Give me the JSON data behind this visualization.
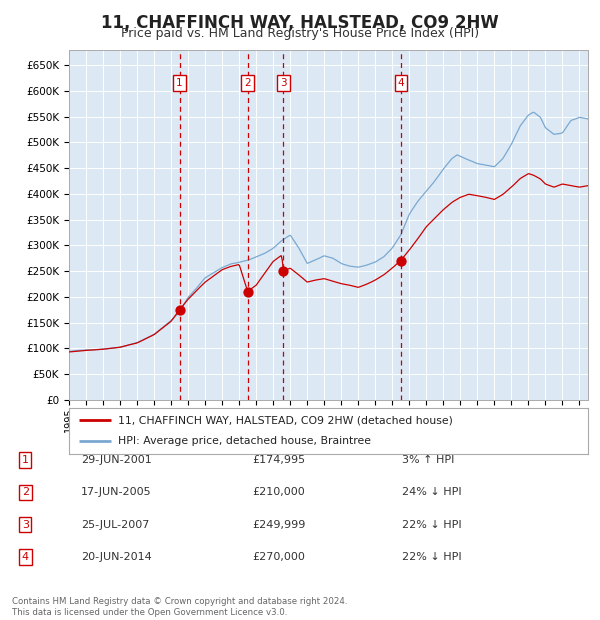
{
  "title": "11, CHAFFINCH WAY, HALSTEAD, CO9 2HW",
  "subtitle": "Price paid vs. HM Land Registry's House Price Index (HPI)",
  "title_fontsize": 12,
  "subtitle_fontsize": 9,
  "background_color": "#ffffff",
  "plot_bg_color": "#dce9f5",
  "grid_color": "#ffffff",
  "ylim": [
    0,
    680000
  ],
  "yticks": [
    0,
    50000,
    100000,
    150000,
    200000,
    250000,
    300000,
    350000,
    400000,
    450000,
    500000,
    550000,
    600000,
    650000
  ],
  "ytick_labels": [
    "£0",
    "£50K",
    "£100K",
    "£150K",
    "£200K",
    "£250K",
    "£300K",
    "£350K",
    "£400K",
    "£450K",
    "£500K",
    "£550K",
    "£600K",
    "£650K"
  ],
  "sale_color": "#cc0000",
  "hpi_color": "#7aa8d0",
  "sale_dot_color": "#cc0000",
  "dashed_line_color": "#cc0000",
  "legend_sale_label": "11, CHAFFINCH WAY, HALSTEAD, CO9 2HW (detached house)",
  "legend_hpi_label": "HPI: Average price, detached house, Braintree",
  "transactions": [
    {
      "id": 1,
      "date": "29-JUN-2001",
      "price": 174995,
      "pct": "3%",
      "dir": "↑",
      "year": 2001.5
    },
    {
      "id": 2,
      "date": "17-JUN-2005",
      "price": 210000,
      "pct": "24%",
      "dir": "↓",
      "year": 2005.5
    },
    {
      "id": 3,
      "date": "25-JUL-2007",
      "price": 249999,
      "pct": "22%",
      "dir": "↓",
      "year": 2007.6
    },
    {
      "id": 4,
      "date": "20-JUN-2014",
      "price": 270000,
      "pct": "22%",
      "dir": "↓",
      "year": 2014.5
    }
  ],
  "footer": "Contains HM Land Registry data © Crown copyright and database right 2024.\nThis data is licensed under the Open Government Licence v3.0.",
  "xlim_start": 1995.0,
  "xlim_end": 2025.5
}
